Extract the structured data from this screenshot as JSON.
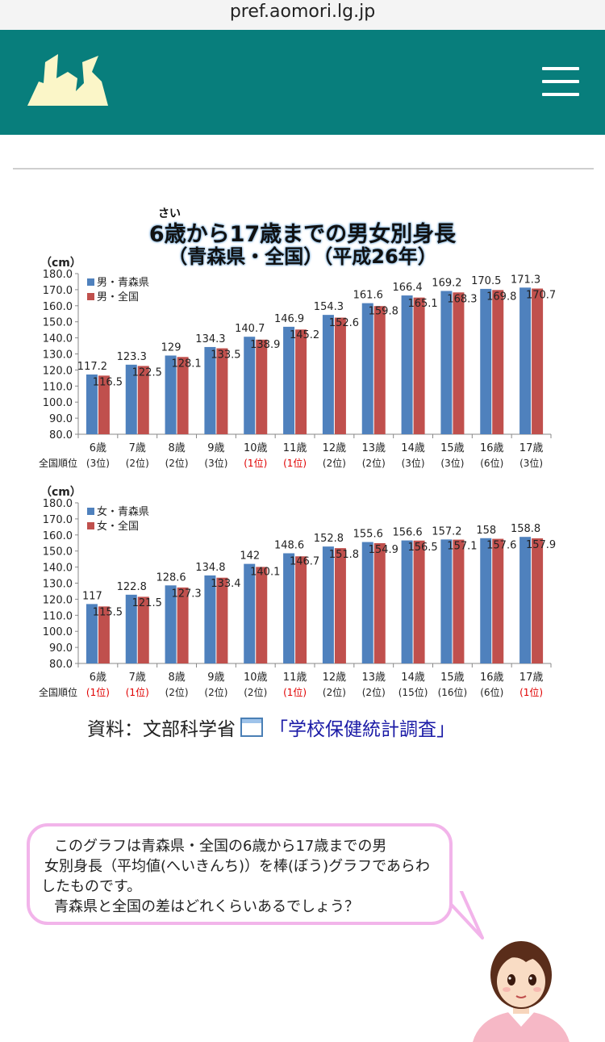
{
  "browser": {
    "url": "pref.aomori.lg.jp"
  },
  "header": {
    "logo_icon": "aomori-prefecture-logo",
    "menu_icon": "hamburger-menu-icon",
    "bg_color": "#087e7c"
  },
  "chart_title": {
    "furigana": "さい",
    "line1": "6歳から17歳までの男女別身長",
    "line2": "（青森県・全国）（平成26年）"
  },
  "chart_data": [
    {
      "type": "bar",
      "unit": "（cm）",
      "categories": [
        "6歳",
        "7歳",
        "8歳",
        "9歳",
        "10歳",
        "11歳",
        "12歳",
        "13歳",
        "14歳",
        "15歳",
        "16歳",
        "17歳"
      ],
      "series": [
        {
          "name": "男・青森県",
          "color": "#4f81bd",
          "values": [
            117.2,
            123.3,
            129.0,
            134.3,
            140.7,
            146.9,
            154.3,
            161.6,
            166.4,
            169.2,
            170.5,
            171.3
          ]
        },
        {
          "name": "男・全国",
          "color": "#c0504d",
          "values": [
            116.5,
            122.5,
            128.1,
            133.5,
            138.9,
            145.2,
            152.6,
            159.8,
            165.1,
            168.3,
            169.8,
            170.7
          ]
        }
      ],
      "ylim": [
        80.0,
        180.0
      ],
      "yticks": [
        "180.0",
        "170.0",
        "160.0",
        "150.0",
        "140.0",
        "130.0",
        "120.0",
        "110.0",
        "100.0",
        "90.0",
        "80.0"
      ],
      "rank_label": "全国順位",
      "ranks": [
        "(3位)",
        "(2位)",
        "(2位)",
        "(3位)",
        "(1位)",
        "(1位)",
        "(2位)",
        "(2位)",
        "(3位)",
        "(3位)",
        "(6位)",
        "(3位)"
      ],
      "rank_highlight_color": "#e00000",
      "legend": "top-left",
      "grid": false
    },
    {
      "type": "bar",
      "unit": "（cm）",
      "categories": [
        "6歳",
        "7歳",
        "8歳",
        "9歳",
        "10歳",
        "11歳",
        "12歳",
        "13歳",
        "14歳",
        "15歳",
        "16歳",
        "17歳"
      ],
      "series": [
        {
          "name": "女・青森県",
          "color": "#4f81bd",
          "values": [
            117.0,
            122.8,
            128.6,
            134.8,
            142.0,
            148.6,
            152.8,
            155.6,
            156.6,
            157.2,
            158.0,
            158.8
          ]
        },
        {
          "name": "女・全国",
          "color": "#c0504d",
          "values": [
            115.5,
            121.5,
            127.3,
            133.4,
            140.1,
            146.7,
            151.8,
            154.9,
            156.5,
            157.1,
            157.6,
            157.9
          ]
        }
      ],
      "ylim": [
        80.0,
        180.0
      ],
      "yticks": [
        "180.0",
        "170.0",
        "160.0",
        "150.0",
        "140.0",
        "130.0",
        "120.0",
        "110.0",
        "100.0",
        "90.0",
        "80.0"
      ],
      "rank_label": "全国順位",
      "ranks": [
        "(1位)",
        "(1位)",
        "(2位)",
        "(2位)",
        "(2位)",
        "(1位)",
        "(2位)",
        "(2位)",
        "(15位)",
        "(16位)",
        "(6位)",
        "(1位)"
      ],
      "rank_highlight_color": "#e00000",
      "legend": "top-left",
      "grid": false
    }
  ],
  "source": {
    "label": "資料：文部科学省",
    "ext_icon": "external-link-icon",
    "link_text": "「学校保健統計調査」"
  },
  "bubble": {
    "lines": [
      "このグラフは青森県・全国の6歳から17歳までの男",
      "女別身長（平均値(へいきんち)）を棒(ぼう)グラフであらわ",
      "したものです。",
      "青森県と全国の差はどれくらいあるでしょう？"
    ],
    "border_color": "#f2b4ea"
  },
  "character": {
    "icon": "girl-character-illustration"
  }
}
